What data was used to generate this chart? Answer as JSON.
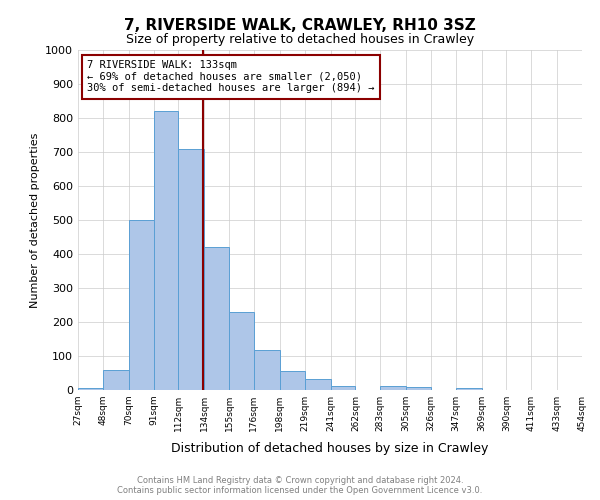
{
  "title": "7, RIVERSIDE WALK, CRAWLEY, RH10 3SZ",
  "subtitle": "Size of property relative to detached houses in Crawley",
  "xlabel": "Distribution of detached houses by size in Crawley",
  "ylabel": "Number of detached properties",
  "bin_edges": [
    27,
    48,
    70,
    91,
    112,
    134,
    155,
    176,
    198,
    219,
    241,
    262,
    283,
    305,
    326,
    347,
    369,
    390,
    411,
    433,
    454
  ],
  "bar_heights": [
    5,
    58,
    500,
    820,
    710,
    420,
    230,
    118,
    57,
    33,
    12,
    0,
    12,
    8,
    0,
    5,
    0,
    0,
    0,
    0
  ],
  "bar_color": "#aec6e8",
  "bar_edgecolor": "#5a9fd4",
  "property_size": 133,
  "vline_color": "#8b0000",
  "annotation_line1": "7 RIVERSIDE WALK: 133sqm",
  "annotation_line2": "← 69% of detached houses are smaller (2,050)",
  "annotation_line3": "30% of semi-detached houses are larger (894) →",
  "annotation_box_edgecolor": "#8b0000",
  "ylim": [
    0,
    1000
  ],
  "yticks": [
    0,
    100,
    200,
    300,
    400,
    500,
    600,
    700,
    800,
    900,
    1000
  ],
  "tick_labels": [
    "27sqm",
    "48sqm",
    "70sqm",
    "91sqm",
    "112sqm",
    "134sqm",
    "155sqm",
    "176sqm",
    "198sqm",
    "219sqm",
    "241sqm",
    "262sqm",
    "283sqm",
    "305sqm",
    "326sqm",
    "347sqm",
    "369sqm",
    "390sqm",
    "411sqm",
    "433sqm",
    "454sqm"
  ],
  "footer_line1": "Contains HM Land Registry data © Crown copyright and database right 2024.",
  "footer_line2": "Contains public sector information licensed under the Open Government Licence v3.0.",
  "background_color": "#ffffff",
  "grid_color": "#cccccc"
}
